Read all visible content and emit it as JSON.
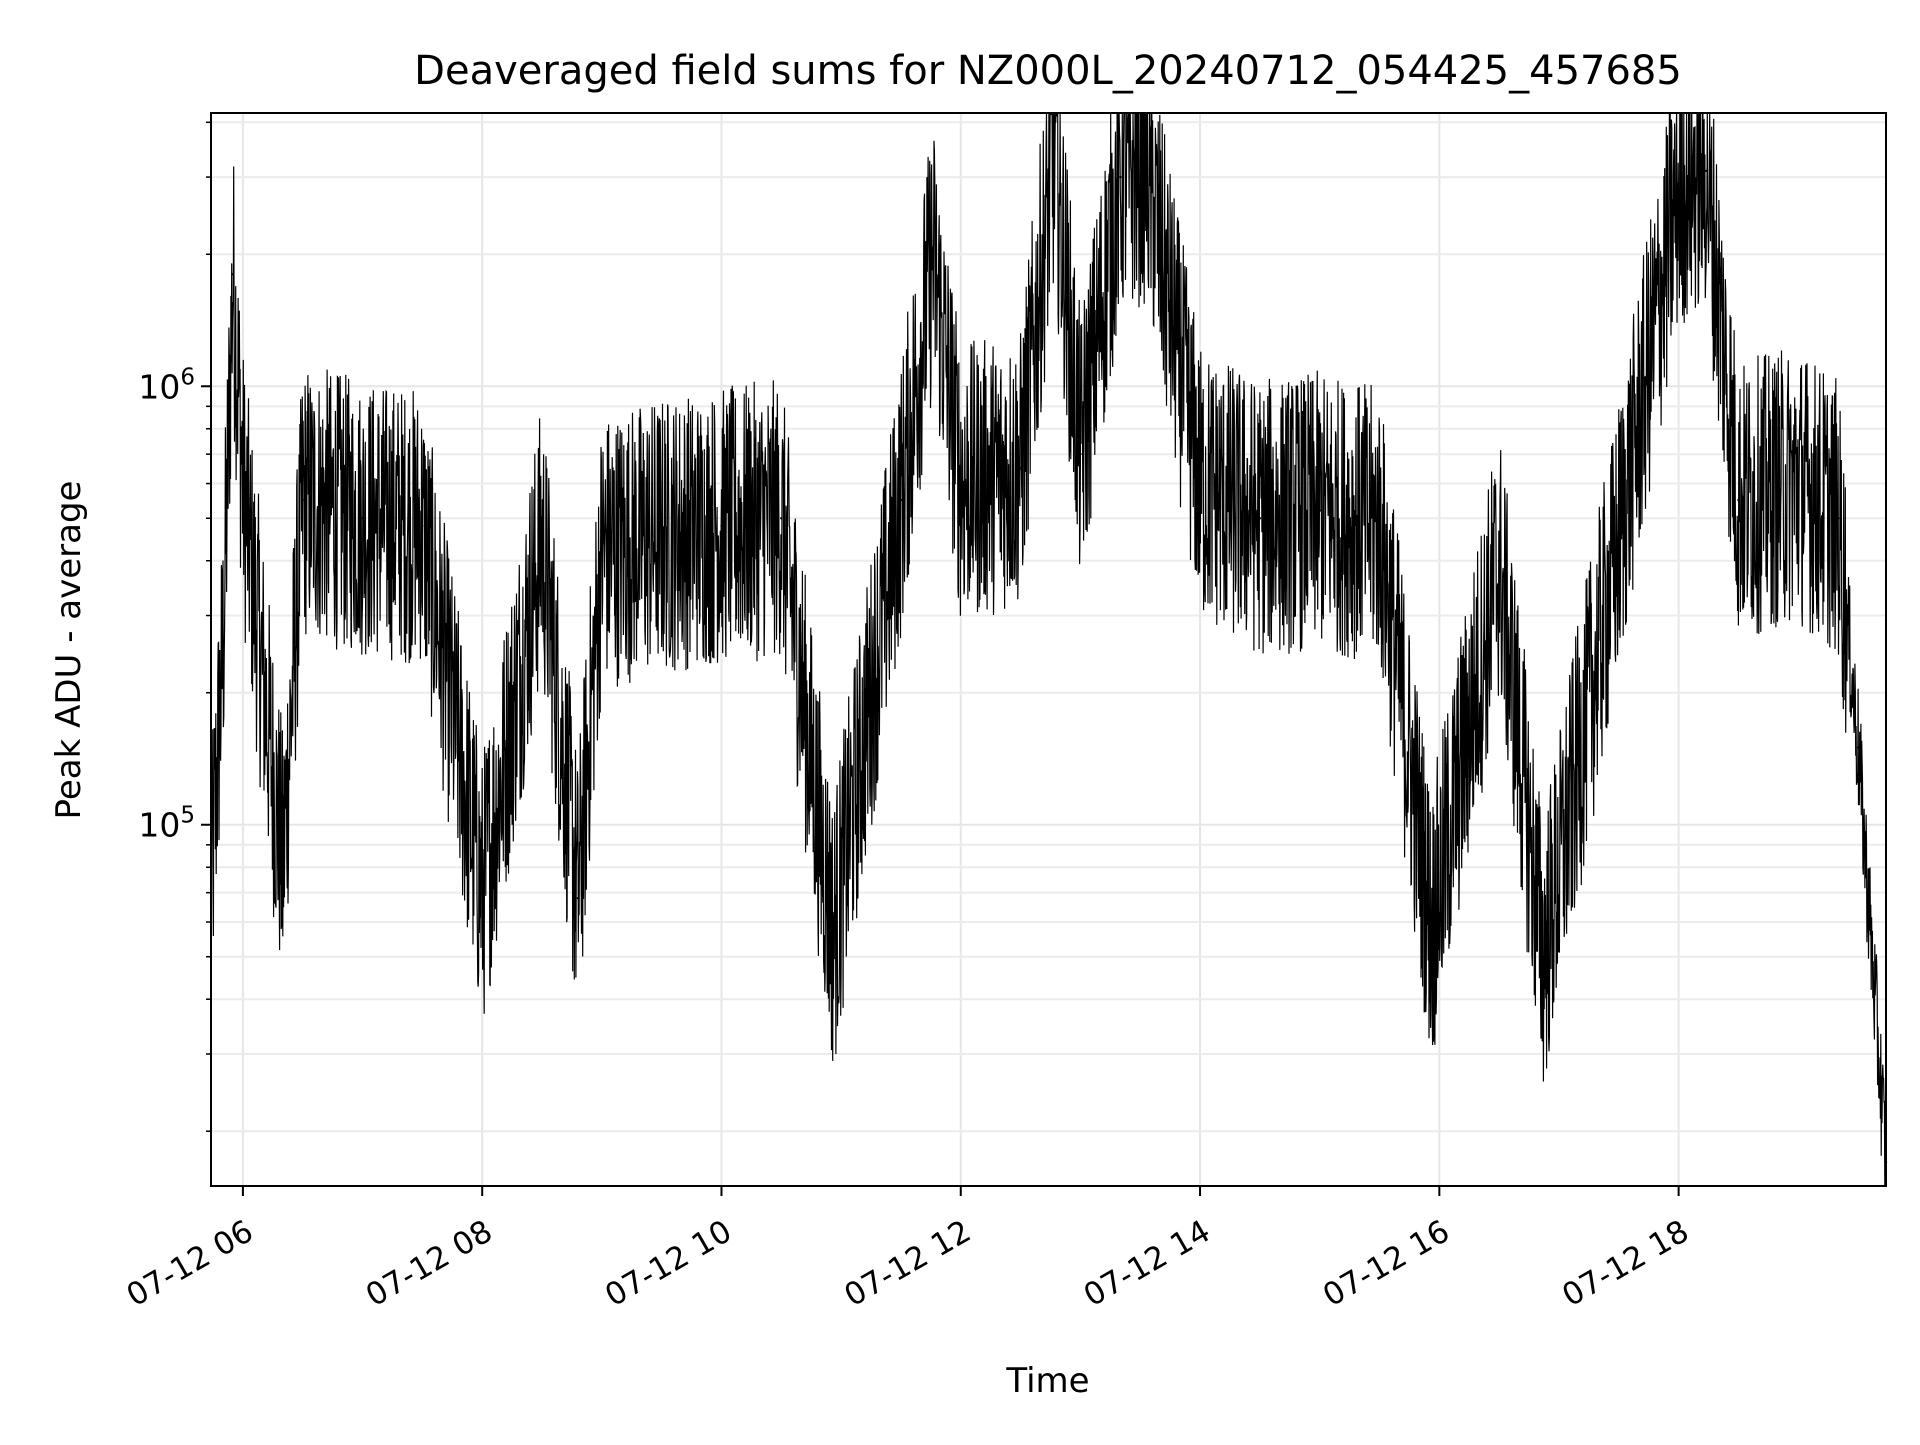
{
  "chart_data": {
    "type": "line",
    "title": "Deaveraged field sums for NZ000L_20240712_054425_457685",
    "xlabel": "Time",
    "ylabel": "Peak ADU - average",
    "x_range": [
      "07-12 05:44",
      "07-12 19:44"
    ],
    "y_scale": "log",
    "ylim": [
      15000,
      4200000
    ],
    "grid": true,
    "x_ticks": [
      {
        "time": "07-12 06:00",
        "label": "07-12 06"
      },
      {
        "time": "07-12 08:00",
        "label": "07-12 08"
      },
      {
        "time": "07-12 10:00",
        "label": "07-12 10"
      },
      {
        "time": "07-12 12:00",
        "label": "07-12 12"
      },
      {
        "time": "07-12 14:00",
        "label": "07-12 14"
      },
      {
        "time": "07-12 16:00",
        "label": "07-12 16"
      },
      {
        "time": "07-12 18:00",
        "label": "07-12 18"
      }
    ],
    "y_ticks": [
      {
        "value": 100000,
        "base": "10",
        "exp": "5"
      },
      {
        "value": 1000000,
        "base": "10",
        "exp": "6"
      }
    ],
    "series": [
      {
        "color": "#000000",
        "points": [
          {
            "t": "07-12 05:44",
            "v": 70000
          },
          {
            "t": "07-12 05:50",
            "v": 250000
          },
          {
            "t": "07-12 05:55",
            "v": 1800000
          },
          {
            "t": "07-12 06:00",
            "v": 600000
          },
          {
            "t": "07-12 06:20",
            "v": 80000
          },
          {
            "t": "07-12 06:30",
            "v": 550000
          },
          {
            "t": "07-12 07:00",
            "v": 500000
          },
          {
            "t": "07-12 07:30",
            "v": 480000
          },
          {
            "t": "07-12 08:00",
            "v": 70000
          },
          {
            "t": "07-12 08:30",
            "v": 450000
          },
          {
            "t": "07-12 08:48",
            "v": 68000
          },
          {
            "t": "07-12 09:00",
            "v": 420000
          },
          {
            "t": "07-12 09:30",
            "v": 460000
          },
          {
            "t": "07-12 10:00",
            "v": 480000
          },
          {
            "t": "07-12 10:30",
            "v": 500000
          },
          {
            "t": "07-12 10:56",
            "v": 56000
          },
          {
            "t": "07-12 11:30",
            "v": 550000
          },
          {
            "t": "07-12 11:46",
            "v": 2000000
          },
          {
            "t": "07-12 12:00",
            "v": 600000
          },
          {
            "t": "07-12 12:30",
            "v": 650000
          },
          {
            "t": "07-12 12:47",
            "v": 3500000
          },
          {
            "t": "07-12 13:00",
            "v": 700000
          },
          {
            "t": "07-12 13:20",
            "v": 3000000
          },
          {
            "t": "07-12 13:33",
            "v": 3200000
          },
          {
            "t": "07-12 14:00",
            "v": 600000
          },
          {
            "t": "07-12 14:30",
            "v": 500000
          },
          {
            "t": "07-12 15:00",
            "v": 520000
          },
          {
            "t": "07-12 15:30",
            "v": 480000
          },
          {
            "t": "07-12 15:56",
            "v": 58000
          },
          {
            "t": "07-12 16:30",
            "v": 400000
          },
          {
            "t": "07-12 16:52",
            "v": 50000
          },
          {
            "t": "07-12 17:30",
            "v": 450000
          },
          {
            "t": "07-12 18:00",
            "v": 2800000
          },
          {
            "t": "07-12 18:14",
            "v": 3100000
          },
          {
            "t": "07-12 18:30",
            "v": 550000
          },
          {
            "t": "07-12 19:00",
            "v": 600000
          },
          {
            "t": "07-12 19:20",
            "v": 500000
          },
          {
            "t": "07-12 19:30",
            "v": 150000
          },
          {
            "t": "07-12 19:44",
            "v": 17000
          }
        ]
      }
    ]
  }
}
